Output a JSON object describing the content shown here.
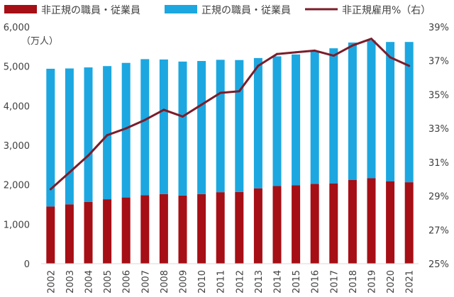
{
  "chart_data": {
    "type": "bar",
    "stacked": true,
    "categories": [
      "2002",
      "2003",
      "2004",
      "2005",
      "2006",
      "2007",
      "2008",
      "2009",
      "2010",
      "2011",
      "2012",
      "2013",
      "2014",
      "2015",
      "2016",
      "2017",
      "2018",
      "2019",
      "2020",
      "2021"
    ],
    "series": [
      {
        "name": "非正規の職員・従業員",
        "type": "bar",
        "axis": "left",
        "color": "#a50f15",
        "values": [
          1451,
          1504,
          1564,
          1633,
          1678,
          1735,
          1765,
          1727,
          1763,
          1812,
          1816,
          1910,
          1967,
          1986,
          2023,
          2036,
          2120,
          2165,
          2090,
          2064
        ]
      },
      {
        "name": "正規の職員・従業員",
        "type": "bar",
        "axis": "left",
        "color": "#1ca7e0",
        "values": [
          3489,
          3444,
          3410,
          3375,
          3411,
          3449,
          3410,
          3395,
          3374,
          3355,
          3345,
          3302,
          3288,
          3317,
          3367,
          3423,
          3485,
          3494,
          3529,
          3555
        ]
      },
      {
        "name": "非正規雇用%（右）",
        "type": "line",
        "axis": "right",
        "color": "#7b1d2a",
        "values": [
          29.4,
          30.4,
          31.4,
          32.6,
          33.0,
          33.5,
          34.1,
          33.7,
          34.4,
          35.1,
          35.2,
          36.7,
          37.4,
          37.5,
          37.6,
          37.3,
          37.9,
          38.3,
          37.2,
          36.7
        ]
      }
    ],
    "y_left": {
      "min": 0,
      "max": 6000,
      "ticks": [
        0,
        1000,
        2000,
        3000,
        4000,
        5000,
        6000
      ],
      "tick_labels": [
        "0",
        "1,000",
        "2,000",
        "3,000",
        "4,000",
        "5,000",
        "6,000"
      ],
      "unit_label": "（万人）"
    },
    "y_right": {
      "min": 25,
      "max": 39,
      "ticks": [
        25,
        27,
        29,
        31,
        33,
        35,
        37,
        39
      ],
      "tick_labels": [
        "25%",
        "27%",
        "29%",
        "31%",
        "33%",
        "35%",
        "37%",
        "39%"
      ]
    },
    "grid": false,
    "legend_position": "top"
  }
}
